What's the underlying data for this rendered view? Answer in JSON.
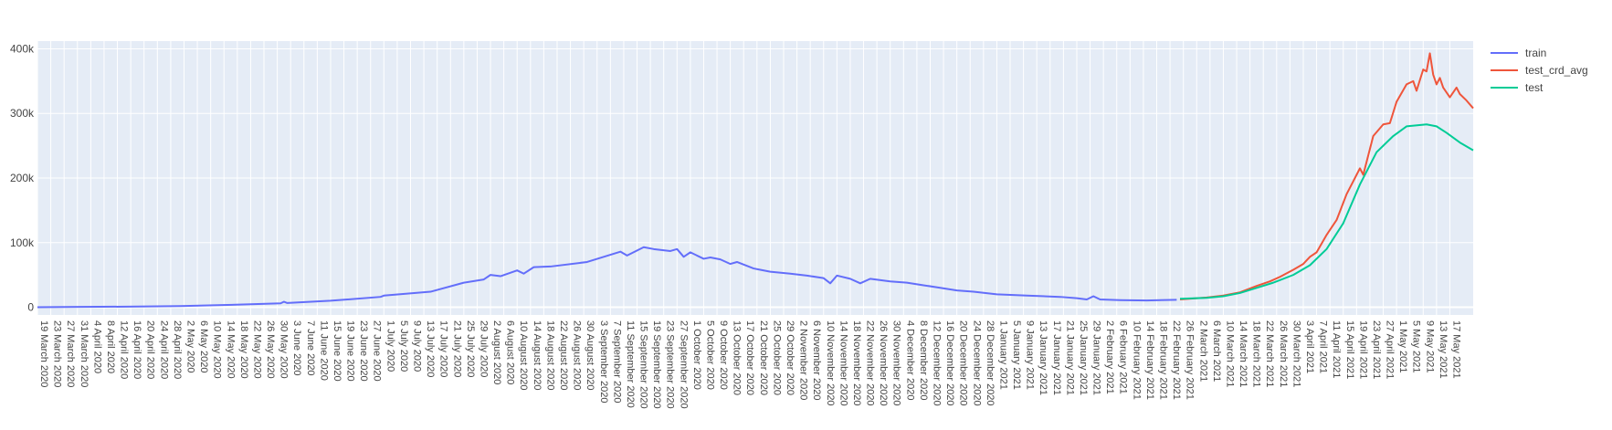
{
  "chart_data": {
    "type": "line",
    "title": "",
    "xlabel": "",
    "ylabel": "",
    "grid": true,
    "legend_position": "top-right",
    "y_range": [
      -12000,
      412000
    ],
    "y_ticks": [
      {
        "value": 0,
        "label": "0"
      },
      {
        "value": 100000,
        "label": "100k"
      },
      {
        "value": 200000,
        "label": "200k"
      },
      {
        "value": 300000,
        "label": "300k"
      },
      {
        "value": 400000,
        "label": "400k"
      }
    ],
    "x_range": [
      "2020-03-19",
      "2021-05-24"
    ],
    "x_ticks": [
      "19 March 2020",
      "23 March 2020",
      "27 March 2020",
      "31 March 2020",
      "4 April 2020",
      "8 April 2020",
      "12 April 2020",
      "16 April 2020",
      "20 April 2020",
      "24 April 2020",
      "28 April 2020",
      "2 May 2020",
      "6 May 2020",
      "10 May 2020",
      "14 May 2020",
      "18 May 2020",
      "22 May 2020",
      "26 May 2020",
      "30 May 2020",
      "3 June 2020",
      "7 June 2020",
      "11 June 2020",
      "15 June 2020",
      "19 June 2020",
      "23 June 2020",
      "27 June 2020",
      "1 July 2020",
      "5 July 2020",
      "9 July 2020",
      "13 July 2020",
      "17 July 2020",
      "21 July 2020",
      "25 July 2020",
      "29 July 2020",
      "2 August 2020",
      "6 August 2020",
      "10 August 2020",
      "14 August 2020",
      "18 August 2020",
      "22 August 2020",
      "26 August 2020",
      "30 August 2020",
      "3 September 2020",
      "7 September 2020",
      "11 September 2020",
      "15 September 2020",
      "19 September 2020",
      "23 September 2020",
      "27 September 2020",
      "1 October 2020",
      "5 October 2020",
      "9 October 2020",
      "13 October 2020",
      "17 October 2020",
      "21 October 2020",
      "25 October 2020",
      "29 October 2020",
      "2 November 2020",
      "6 November 2020",
      "10 November 2020",
      "14 November 2020",
      "18 November 2020",
      "22 November 2020",
      "26 November 2020",
      "30 November 2020",
      "4 December 2020",
      "8 December 2020",
      "12 December 2020",
      "16 December 2020",
      "20 December 2020",
      "24 December 2020",
      "28 December 2020",
      "1 January 2021",
      "5 January 2021",
      "9 January 2021",
      "13 January 2021",
      "17 January 2021",
      "21 January 2021",
      "25 January 2021",
      "29 January 2021",
      "2 February 2021",
      "6 February 2021",
      "10 February 2021",
      "14 February 2021",
      "18 February 2021",
      "22 February 2021",
      "26 February 2021",
      "2 March 2021",
      "6 March 2021",
      "10 March 2021",
      "14 March 2021",
      "18 March 2021",
      "22 March 2021",
      "26 March 2021",
      "30 March 2021",
      "3 April 2021",
      "7 April 2021",
      "11 April 2021",
      "15 April 2021",
      "19 April 2021",
      "23 April 2021",
      "27 April 2021",
      "1 May 2021",
      "5 May 2021",
      "9 May 2021",
      "13 May 2021",
      "17 May 2021"
    ],
    "series": [
      {
        "name": "train",
        "color": "#636efa",
        "points": [
          [
            "2020-03-19",
            100
          ],
          [
            "2020-04-01",
            500
          ],
          [
            "2020-04-15",
            900
          ],
          [
            "2020-05-01",
            1800
          ],
          [
            "2020-05-15",
            3500
          ],
          [
            "2020-05-31",
            6000
          ],
          [
            "2020-06-01",
            8500
          ],
          [
            "2020-06-02",
            6500
          ],
          [
            "2020-06-15",
            10000
          ],
          [
            "2020-06-30",
            16000
          ],
          [
            "2020-07-01",
            18000
          ],
          [
            "2020-07-15",
            24000
          ],
          [
            "2020-07-25",
            38000
          ],
          [
            "2020-07-31",
            43000
          ],
          [
            "2020-08-02",
            50000
          ],
          [
            "2020-08-05",
            48000
          ],
          [
            "2020-08-10",
            57000
          ],
          [
            "2020-08-12",
            52000
          ],
          [
            "2020-08-15",
            62000
          ],
          [
            "2020-08-20",
            63000
          ],
          [
            "2020-08-31",
            70000
          ],
          [
            "2020-09-05",
            78000
          ],
          [
            "2020-09-10",
            86000
          ],
          [
            "2020-09-12",
            80000
          ],
          [
            "2020-09-17",
            93000
          ],
          [
            "2020-09-20",
            90000
          ],
          [
            "2020-09-25",
            87000
          ],
          [
            "2020-09-27",
            90000
          ],
          [
            "2020-09-29",
            78000
          ],
          [
            "2020-10-01",
            85000
          ],
          [
            "2020-10-05",
            75000
          ],
          [
            "2020-10-07",
            77000
          ],
          [
            "2020-10-10",
            74000
          ],
          [
            "2020-10-13",
            67000
          ],
          [
            "2020-10-15",
            70000
          ],
          [
            "2020-10-20",
            60000
          ],
          [
            "2020-10-22",
            58000
          ],
          [
            "2020-10-25",
            55000
          ],
          [
            "2020-10-31",
            52000
          ],
          [
            "2020-11-05",
            49000
          ],
          [
            "2020-11-10",
            45000
          ],
          [
            "2020-11-12",
            37000
          ],
          [
            "2020-11-14",
            49000
          ],
          [
            "2020-11-18",
            44000
          ],
          [
            "2020-11-21",
            37000
          ],
          [
            "2020-11-24",
            44000
          ],
          [
            "2020-11-30",
            40000
          ],
          [
            "2020-12-05",
            38000
          ],
          [
            "2020-12-10",
            34000
          ],
          [
            "2020-12-15",
            30000
          ],
          [
            "2020-12-20",
            26000
          ],
          [
            "2020-12-25",
            24000
          ],
          [
            "2021-01-01",
            20000
          ],
          [
            "2021-01-10",
            18000
          ],
          [
            "2021-01-20",
            16000
          ],
          [
            "2021-01-25",
            14000
          ],
          [
            "2021-01-28",
            12000
          ],
          [
            "2021-01-30",
            17000
          ],
          [
            "2021-02-01",
            12000
          ],
          [
            "2021-02-07",
            11000
          ],
          [
            "2021-02-15",
            10500
          ],
          [
            "2021-02-24",
            11500
          ]
        ]
      },
      {
        "name": "test_crd_avg",
        "color": "#ef553b",
        "points": [
          [
            "2021-02-25",
            12000
          ],
          [
            "2021-03-05",
            15000
          ],
          [
            "2021-03-10",
            18000
          ],
          [
            "2021-03-15",
            23000
          ],
          [
            "2021-03-20",
            33000
          ],
          [
            "2021-03-24",
            40000
          ],
          [
            "2021-03-27",
            47000
          ],
          [
            "2021-03-31",
            58000
          ],
          [
            "2021-04-03",
            67000
          ],
          [
            "2021-04-05",
            78000
          ],
          [
            "2021-04-07",
            85000
          ],
          [
            "2021-04-10",
            112000
          ],
          [
            "2021-04-13",
            135000
          ],
          [
            "2021-04-16",
            175000
          ],
          [
            "2021-04-18",
            195000
          ],
          [
            "2021-04-20",
            215000
          ],
          [
            "2021-04-21",
            205000
          ],
          [
            "2021-04-24",
            265000
          ],
          [
            "2021-04-27",
            283000
          ],
          [
            "2021-04-29",
            285000
          ],
          [
            "2021-05-01",
            318000
          ],
          [
            "2021-05-04",
            345000
          ],
          [
            "2021-05-06",
            350000
          ],
          [
            "2021-05-07",
            335000
          ],
          [
            "2021-05-09",
            368000
          ],
          [
            "2021-05-10",
            365000
          ],
          [
            "2021-05-11",
            393000
          ],
          [
            "2021-05-12",
            360000
          ],
          [
            "2021-05-13",
            345000
          ],
          [
            "2021-05-14",
            355000
          ],
          [
            "2021-05-15",
            340000
          ],
          [
            "2021-05-17",
            325000
          ],
          [
            "2021-05-19",
            340000
          ],
          [
            "2021-05-20",
            330000
          ],
          [
            "2021-05-22",
            320000
          ],
          [
            "2021-05-24",
            308000
          ]
        ]
      },
      {
        "name": "test",
        "color": "#00cc96",
        "points": [
          [
            "2021-02-25",
            13000
          ],
          [
            "2021-03-05",
            14500
          ],
          [
            "2021-03-10",
            17000
          ],
          [
            "2021-03-15",
            22000
          ],
          [
            "2021-03-20",
            30000
          ],
          [
            "2021-03-25",
            38000
          ],
          [
            "2021-03-31",
            50000
          ],
          [
            "2021-04-05",
            65000
          ],
          [
            "2021-04-10",
            90000
          ],
          [
            "2021-04-15",
            130000
          ],
          [
            "2021-04-20",
            190000
          ],
          [
            "2021-04-25",
            240000
          ],
          [
            "2021-04-30",
            265000
          ],
          [
            "2021-05-04",
            280000
          ],
          [
            "2021-05-10",
            283000
          ],
          [
            "2021-05-13",
            280000
          ],
          [
            "2021-05-16",
            270000
          ],
          [
            "2021-05-20",
            255000
          ],
          [
            "2021-05-24",
            243000
          ]
        ]
      }
    ]
  }
}
